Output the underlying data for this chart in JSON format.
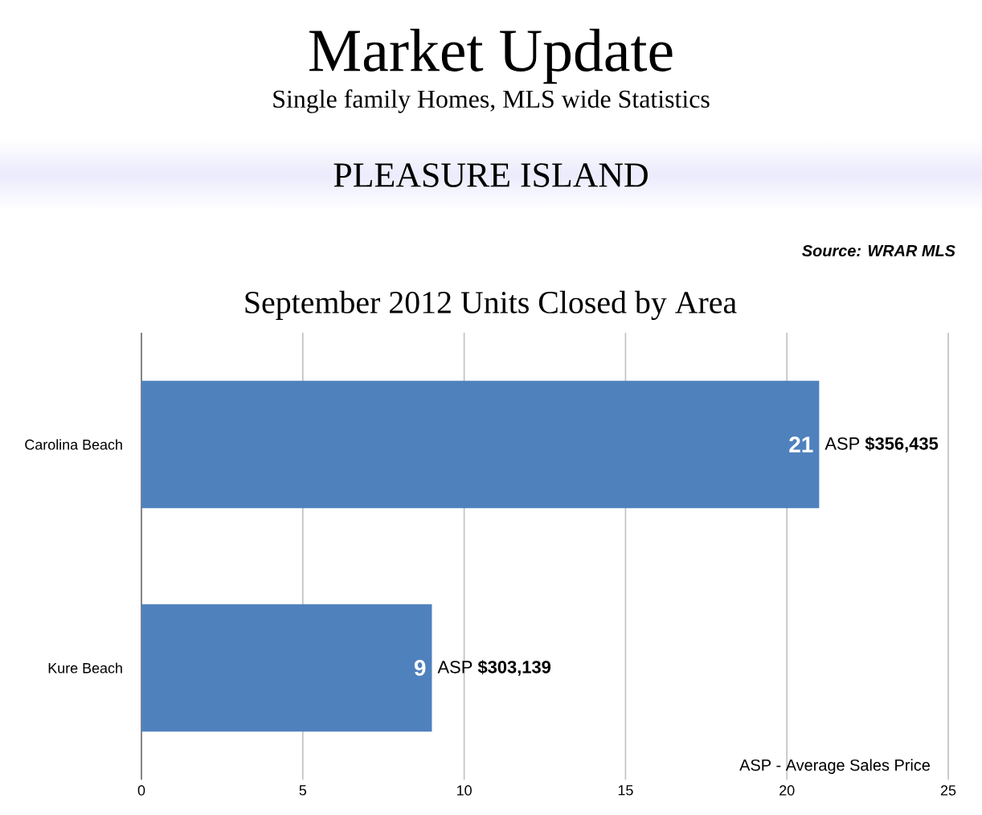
{
  "chart_data": {
    "type": "bar",
    "orientation": "horizontal",
    "title": "September 2012 Units Closed by Area",
    "subtitle": "Single family Homes, MLS wide Statistics",
    "categories": [
      "Carolina Beach",
      "Kure Beach"
    ],
    "values": [
      21,
      9
    ],
    "color": "#4f81bd",
    "xlim": [
      0,
      25
    ],
    "xticks": [
      0,
      5,
      10,
      15,
      20,
      25
    ],
    "grid": "x",
    "data_labels": true,
    "annotations": [
      "Market Update",
      "PLEASURE ISLAND",
      "Source: WRAR MLS",
      {
        "text": "ASP **$356,435**",
        "x": 21,
        "y": "Carolina Beach"
      },
      {
        "text": "ASP **$303,139**",
        "x": 9,
        "y": "Kure Beach"
      },
      "ASP - Average Sales Price"
    ]
  }
}
